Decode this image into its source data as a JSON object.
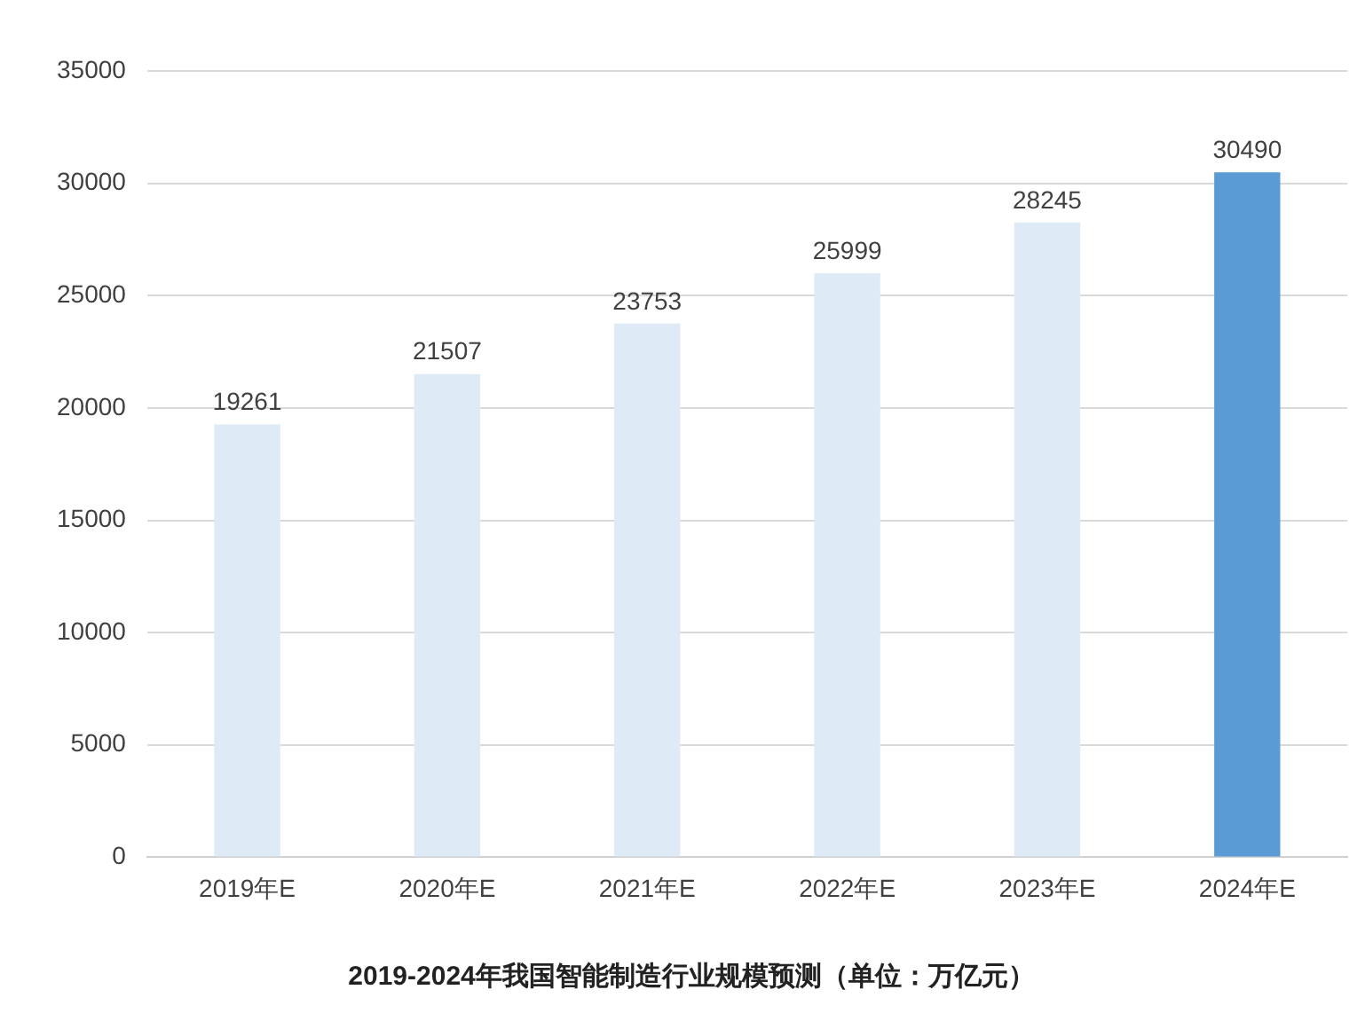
{
  "chart_data": {
    "type": "bar",
    "title": "2019-2024年我国智能制造行业规模预测（单位：万亿元）",
    "categories": [
      "2019年E",
      "2020年E",
      "2021年E",
      "2022年E",
      "2023年E",
      "2024年E"
    ],
    "values": [
      19261,
      21507,
      23753,
      25999,
      28245,
      30490
    ],
    "colors": [
      "#deeaf6",
      "#deeaf6",
      "#deeaf6",
      "#deeaf6",
      "#deeaf6",
      "#5b9bd5"
    ],
    "ylim": [
      0,
      35000
    ],
    "yticks": [
      0,
      5000,
      10000,
      15000,
      20000,
      25000,
      30000,
      35000
    ],
    "grid": "y",
    "data_labels": true
  }
}
